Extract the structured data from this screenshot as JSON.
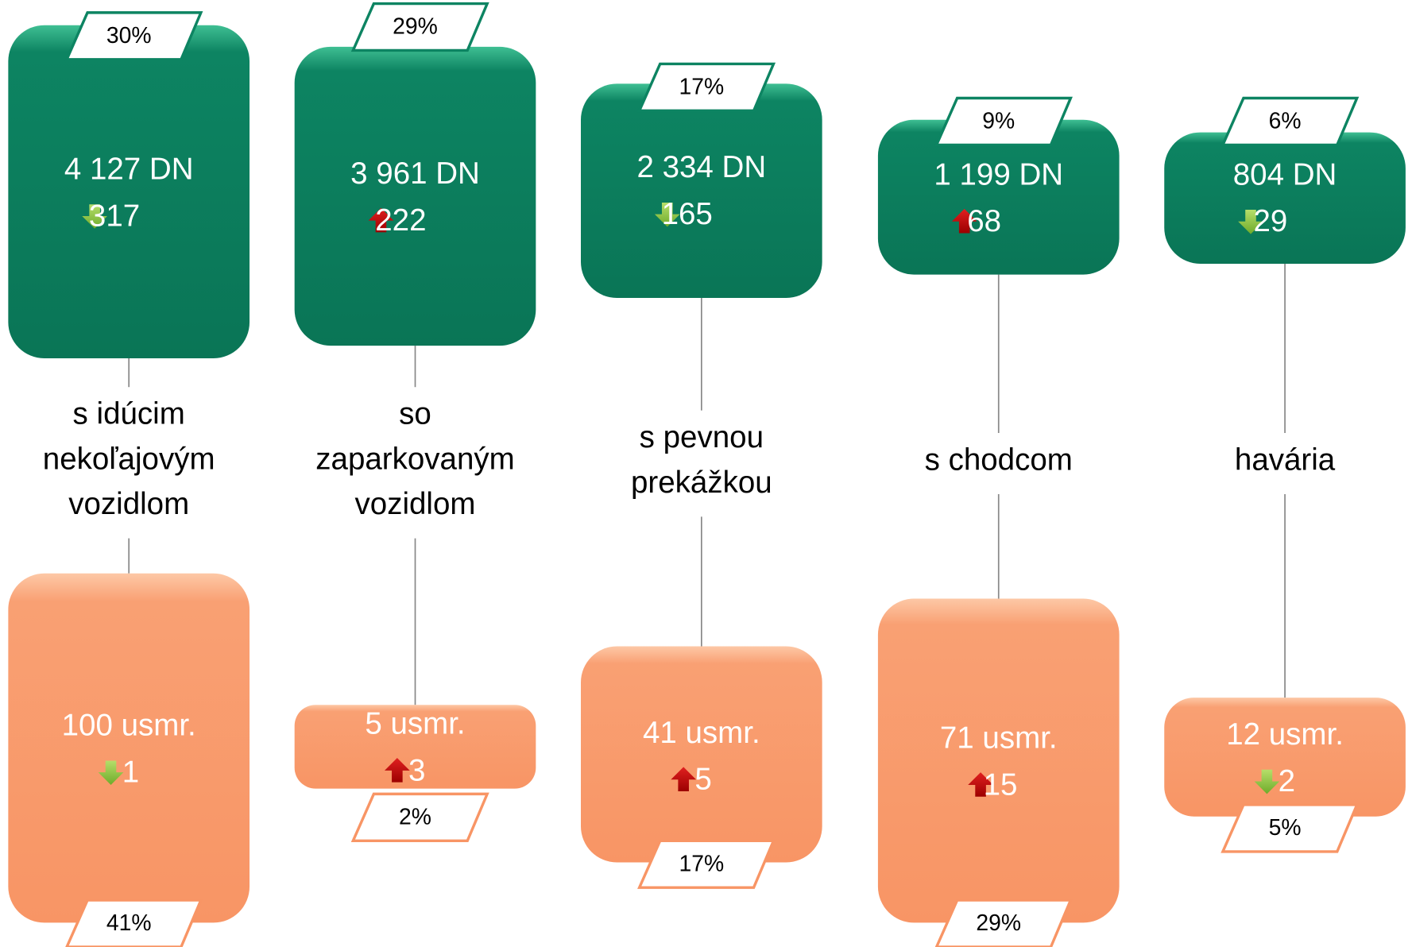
{
  "columns": [
    {
      "top": {
        "share": "30%",
        "count": "4 127 DN",
        "trend": "down",
        "change": "317"
      },
      "label": [
        "s idúcim",
        "nekoľajovým",
        "vozidlom"
      ],
      "bottom": {
        "count": "100 usmr.",
        "trend": "down",
        "change": "1",
        "share": "41%"
      }
    },
    {
      "top": {
        "share": "29%",
        "count": "3 961 DN",
        "trend": "up",
        "change": "222"
      },
      "label": [
        "so",
        "zaparkovaným",
        "vozidlom"
      ],
      "bottom": {
        "count": "5 usmr.",
        "trend": "up",
        "change": "3",
        "share": "2%"
      }
    },
    {
      "top": {
        "share": "17%",
        "count": "2 334 DN",
        "trend": "down",
        "change": "165"
      },
      "label": [
        "s pevnou",
        "prekážkou"
      ],
      "bottom": {
        "count": "41 usmr.",
        "trend": "up",
        "change": "5",
        "share": "17%"
      }
    },
    {
      "top": {
        "share": "9%",
        "count": "1 199 DN",
        "trend": "up",
        "change": "68"
      },
      "label": [
        "s chodcom"
      ],
      "bottom": {
        "count": "71 usmr.",
        "trend": "up",
        "change": "15",
        "share": "29%"
      }
    },
    {
      "top": {
        "share": "6%",
        "count": "804 DN",
        "trend": "down",
        "change": "29"
      },
      "label": [
        "havária"
      ],
      "bottom": {
        "count": "12 usmr.",
        "trend": "down",
        "change": "2",
        "share": "5%"
      }
    }
  ]
}
